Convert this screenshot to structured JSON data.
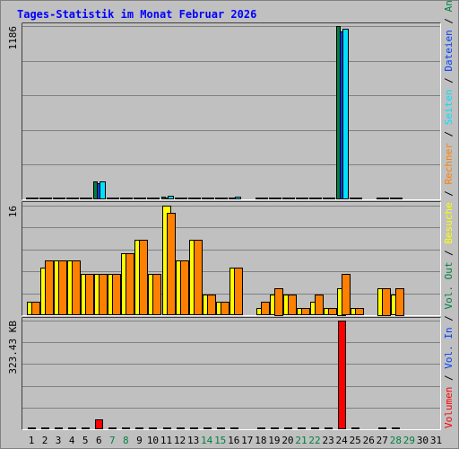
{
  "chart_data": {
    "type": "bar",
    "title": "Tages-Statistik im Monat Februar 2026",
    "days": [
      {
        "label": "1",
        "weekend": false
      },
      {
        "label": "2",
        "weekend": false
      },
      {
        "label": "3",
        "weekend": false
      },
      {
        "label": "4",
        "weekend": false
      },
      {
        "label": "5",
        "weekend": false
      },
      {
        "label": "6",
        "weekend": false
      },
      {
        "label": "7",
        "weekend": true
      },
      {
        "label": "8",
        "weekend": true
      },
      {
        "label": "9",
        "weekend": false
      },
      {
        "label": "10",
        "weekend": false
      },
      {
        "label": "11",
        "weekend": false
      },
      {
        "label": "12",
        "weekend": false
      },
      {
        "label": "13",
        "weekend": false
      },
      {
        "label": "14",
        "weekend": true
      },
      {
        "label": "15",
        "weekend": true
      },
      {
        "label": "16",
        "weekend": false
      },
      {
        "label": "17",
        "weekend": false
      },
      {
        "label": "18",
        "weekend": false
      },
      {
        "label": "19",
        "weekend": false
      },
      {
        "label": "20",
        "weekend": false
      },
      {
        "label": "21",
        "weekend": true
      },
      {
        "label": "22",
        "weekend": true
      },
      {
        "label": "23",
        "weekend": false
      },
      {
        "label": "24",
        "weekend": false
      },
      {
        "label": "25",
        "weekend": false
      },
      {
        "label": "26",
        "weekend": false
      },
      {
        "label": "27",
        "weekend": false
      },
      {
        "label": "28",
        "weekend": true
      },
      {
        "label": "29",
        "weekend": true
      },
      {
        "label": "30",
        "weekend": false
      },
      {
        "label": "31",
        "weekend": false
      }
    ],
    "panels": [
      {
        "ymax": 1186,
        "ymax_label": "1186",
        "series": [
          {
            "name": "Anfragen",
            "color": "#008040",
            "values": [
              8,
              10,
              10,
              10,
              8,
              120,
              10,
              10,
              10,
              8,
              16,
              10,
              10,
              8,
              8,
              10,
              null,
              8,
              8,
              8,
              8,
              8,
              8,
              1186,
              8,
              null,
              8,
              8,
              null,
              null,
              null
            ]
          },
          {
            "name": "Dateien",
            "color": "#0040ff",
            "values": [
              6,
              8,
              8,
              8,
              6,
              110,
              8,
              8,
              8,
              6,
              14,
              8,
              8,
              6,
              6,
              8,
              null,
              6,
              6,
              6,
              6,
              6,
              6,
              1150,
              6,
              null,
              6,
              6,
              null,
              null,
              null
            ]
          },
          {
            "name": "Seiten",
            "color": "#00e0ff",
            "values": [
              8,
              14,
              14,
              14,
              8,
              120,
              10,
              10,
              10,
              8,
              22,
              12,
              14,
              8,
              8,
              16,
              null,
              8,
              8,
              8,
              8,
              8,
              8,
              1170,
              8,
              null,
              8,
              8,
              null,
              null,
              null
            ]
          }
        ]
      },
      {
        "ymax": 16,
        "ymax_label": "16",
        "series": [
          {
            "name": "Besuche",
            "color": "#ffff00",
            "values": [
              2,
              7,
              8,
              8,
              6,
              6,
              6,
              9,
              11,
              6,
              16,
              8,
              11,
              3,
              2,
              7,
              null,
              1,
              3,
              3,
              1,
              2,
              1,
              4,
              1,
              null,
              4,
              3,
              null,
              null,
              null
            ]
          },
          {
            "name": "Rechner",
            "color": "#ff8000",
            "values": [
              2,
              8,
              8,
              8,
              6,
              6,
              6,
              9,
              11,
              6,
              15,
              8,
              11,
              3,
              2,
              7,
              null,
              2,
              4,
              3,
              1,
              3,
              1,
              6,
              1,
              null,
              4,
              4,
              null,
              null,
              null
            ]
          }
        ]
      },
      {
        "ymax": 323.43,
        "ymax_label": "323.43 KB",
        "series": [
          {
            "name": "Volumen",
            "color": "#ff0000",
            "values": [
              4,
              4,
              4,
              4,
              4,
              30,
              4,
              4,
              4,
              4,
              4,
              4,
              4,
              4,
              4,
              4,
              null,
              4,
              4,
              4,
              4,
              4,
              4,
              323.43,
              4,
              null,
              4,
              4,
              null,
              null,
              null
            ]
          }
        ]
      }
    ],
    "right_legend": [
      {
        "text": "Volumen",
        "color": "#ff0000"
      },
      {
        "text": " / ",
        "color": "#000000"
      },
      {
        "text": "Vol. In",
        "color": "#0040ff"
      },
      {
        "text": " / ",
        "color": "#000000"
      },
      {
        "text": "Vol. Out",
        "color": "#008040"
      },
      {
        "text": " / ",
        "color": "#000000"
      },
      {
        "text": "Besuche",
        "color": "#ffff00"
      },
      {
        "text": " / ",
        "color": "#000000"
      },
      {
        "text": "Rechner",
        "color": "#ff8000"
      },
      {
        "text": " / ",
        "color": "#000000"
      },
      {
        "text": "Seiten",
        "color": "#00e0ff"
      },
      {
        "text": " / ",
        "color": "#000000"
      },
      {
        "text": "Dateien",
        "color": "#0040ff"
      },
      {
        "text": " / ",
        "color": "#000000"
      },
      {
        "text": "Anfragen",
        "color": "#008040"
      }
    ],
    "colors": {
      "title": "#0000ff",
      "weekday_label": "#000000",
      "weekend_label": "#008040",
      "background": "#c0c0c0",
      "grid": "#808080"
    },
    "grid": true
  }
}
